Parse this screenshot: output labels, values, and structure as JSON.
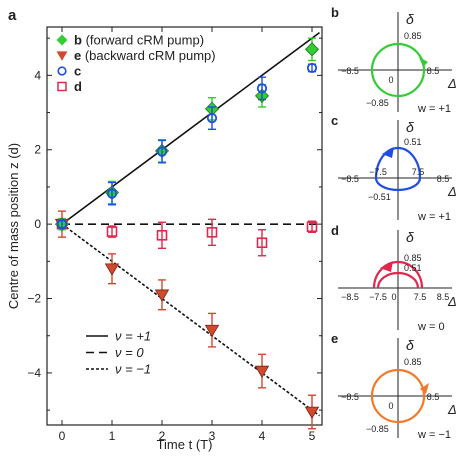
{
  "panel_label": "a",
  "colors": {
    "green": "#33cc33",
    "red_fill": "#d04a30",
    "blue": "#1f4fe0",
    "pink": "#e0284f",
    "orange": "#f07a2a",
    "axis": "#222222"
  },
  "chart_data": [
    {
      "type": "scatter",
      "panel": "a",
      "xlabel": "Time t (T)",
      "ylabel": "Centre of mass position z (d)",
      "xlim": [
        -0.3,
        5.2
      ],
      "ylim": [
        -5.4,
        5.3
      ],
      "xticks": [
        "0",
        "1",
        "2",
        "3",
        "4",
        "5"
      ],
      "yticks": [
        "−4",
        "−2",
        "0",
        "2",
        "4"
      ],
      "grid": false,
      "legend_placement": "top-left",
      "series": [
        {
          "name": "b",
          "desc": "(forward cRM pump)",
          "marker": "diamond",
          "color": "#33cc33",
          "x": [
            0,
            1,
            2,
            3,
            4,
            5
          ],
          "y": [
            0,
            0.85,
            1.97,
            3.1,
            3.45,
            4.7
          ],
          "err": [
            0.15,
            0.3,
            0.3,
            0.3,
            0.3,
            0.3
          ]
        },
        {
          "name": "e",
          "desc": "(backward cRM pump)",
          "marker": "triangle-down",
          "color": "#d04a30",
          "x": [
            0,
            1,
            2,
            3,
            4,
            5
          ],
          "y": [
            0,
            -1.2,
            -1.9,
            -2.85,
            -3.95,
            -5.05
          ],
          "err": [
            0.35,
            0.4,
            0.4,
            0.45,
            0.45,
            0.45
          ]
        },
        {
          "name": "c",
          "desc": "",
          "marker": "circle-open",
          "color": "#1f4fe0",
          "x": [
            0,
            1,
            2,
            3,
            4,
            5
          ],
          "y": [
            0,
            0.82,
            1.95,
            2.85,
            3.65,
            4.2
          ],
          "err": [
            0.1,
            0.3,
            0.3,
            0.3,
            0.3,
            0.1
          ]
        },
        {
          "name": "d",
          "desc": "",
          "marker": "square-open",
          "color": "#e0284f",
          "x": [
            0,
            1,
            2,
            3,
            4,
            5
          ],
          "y": [
            0,
            -0.2,
            -0.3,
            -0.22,
            -0.5,
            -0.07
          ],
          "err": [
            0.1,
            0.15,
            0.35,
            0.35,
            0.35,
            0.15
          ]
        }
      ],
      "lines": [
        {
          "name": "ν = +1",
          "style": "solid",
          "slope": 1
        },
        {
          "name": "ν = 0",
          "style": "dashed",
          "slope": 0
        },
        {
          "name": "ν = −1",
          "style": "dotted",
          "slope": -1
        }
      ]
    },
    {
      "panel": "b",
      "type": "diagram",
      "color": "#33cc33",
      "axis_x": "Δ",
      "axis_y": "δ",
      "ticks_x": [
        "−8.5",
        "0",
        "8.5"
      ],
      "ticks_y": [
        "0.85",
        "−0.85"
      ],
      "winding_label": "w = +1",
      "shape": "full-circle",
      "arrow": "counter-clockwise"
    },
    {
      "panel": "c",
      "type": "diagram",
      "color": "#1f4fe0",
      "axis_x": "Δ",
      "axis_y": "δ",
      "ticks_x": [
        "−8.5",
        "−7.5",
        "7.5",
        "8.5"
      ],
      "ticks_y": [
        "0.51",
        "−0.51"
      ],
      "winding_label": "w = +1",
      "shape": "D-loop",
      "arrow": "counter-clockwise"
    },
    {
      "panel": "d",
      "type": "diagram",
      "color": "#e0284f",
      "axis_x": "Δ",
      "axis_y": "δ",
      "ticks_x": [
        "−8.5",
        "−7.5",
        "0",
        "7.5",
        "8.5"
      ],
      "ticks_y": [
        "0.85",
        "0.51"
      ],
      "winding_label": "w = 0",
      "shape": "two-upper-arcs",
      "arrow": "counter-clockwise"
    },
    {
      "panel": "e",
      "type": "diagram",
      "color": "#f07a2a",
      "axis_x": "Δ",
      "axis_y": "δ",
      "ticks_x": [
        "−8.5",
        "0",
        "8.5"
      ],
      "ticks_y": [
        "0.85",
        "−0.85"
      ],
      "winding_label": "w = −1",
      "shape": "full-circle",
      "arrow": "clockwise"
    }
  ]
}
